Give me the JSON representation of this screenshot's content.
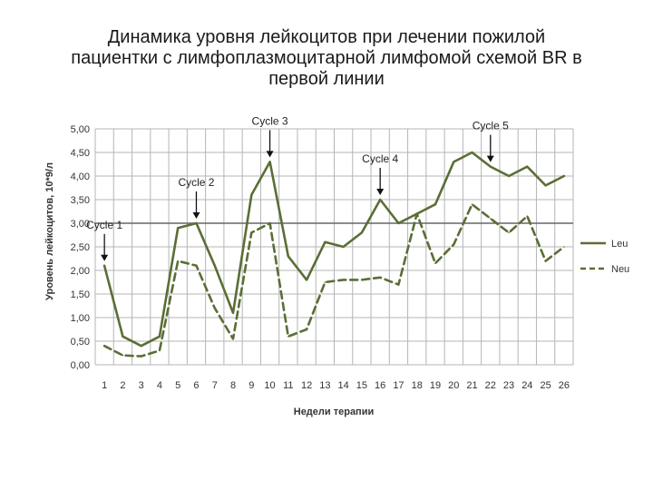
{
  "title_lines": [
    "Динамика уровня лейкоцитов при  лечении пожилой",
    "пациентки с лимфоплазмоцитарной лимфомой схемой BR в",
    "первой линии"
  ],
  "chart_data": {
    "type": "line",
    "title": "Динамика уровня лейкоцитов при  лечении пожилой пациентки с лимфоплазмоцитарной лимфомой схемой BR в первой линии",
    "xlabel": "Недели терапии",
    "ylabel": "Уровень лейкоцитов, 10*9/л",
    "x": [
      1,
      2,
      3,
      4,
      5,
      6,
      7,
      8,
      9,
      10,
      11,
      12,
      13,
      14,
      15,
      16,
      17,
      18,
      19,
      20,
      21,
      22,
      23,
      24,
      25,
      26
    ],
    "x_tick_labels": [
      "1",
      "2",
      "3",
      "4",
      "5",
      "6",
      "7",
      "8",
      "9",
      "10",
      "11",
      "12",
      "13",
      "14",
      "15",
      "16",
      "17",
      "18",
      "19",
      "20",
      "21",
      "22",
      "23",
      "24",
      "25",
      "26"
    ],
    "y_tick_labels": [
      "0,00",
      "0,50",
      "1,00",
      "1,50",
      "2,00",
      "2,50",
      "3,00",
      "3,50",
      "4,00",
      "4,50",
      "5,00"
    ],
    "ylim": [
      0,
      5
    ],
    "grid": true,
    "reference_line": 3.0,
    "series": [
      {
        "name": "Leu",
        "color": "#5a6e35",
        "style": "solid",
        "values": [
          2.1,
          0.6,
          0.4,
          0.6,
          2.9,
          3.0,
          2.1,
          1.1,
          3.6,
          4.3,
          2.3,
          1.8,
          2.6,
          2.5,
          2.8,
          3.5,
          3.0,
          3.2,
          3.4,
          4.3,
          4.5,
          4.2,
          4.0,
          4.2,
          3.8,
          4.0
        ]
      },
      {
        "name": "Neu",
        "color": "#5a6e35",
        "style": "dashed",
        "values": [
          0.4,
          0.2,
          0.18,
          0.3,
          2.2,
          2.1,
          1.2,
          0.55,
          2.8,
          3.0,
          0.6,
          0.75,
          1.75,
          1.8,
          1.8,
          1.85,
          1.7,
          3.2,
          2.15,
          2.55,
          3.4,
          3.1,
          2.8,
          3.15,
          2.2,
          2.5
        ]
      }
    ],
    "legend_position": "right",
    "annotations": [
      {
        "text": "Cycle 1",
        "week": 1
      },
      {
        "text": "Cycle 2",
        "week": 6
      },
      {
        "text": "Cycle 3",
        "week": 10
      },
      {
        "text": "Cycle 4",
        "week": 16
      },
      {
        "text": "Cycle 5",
        "week": 22
      }
    ]
  }
}
